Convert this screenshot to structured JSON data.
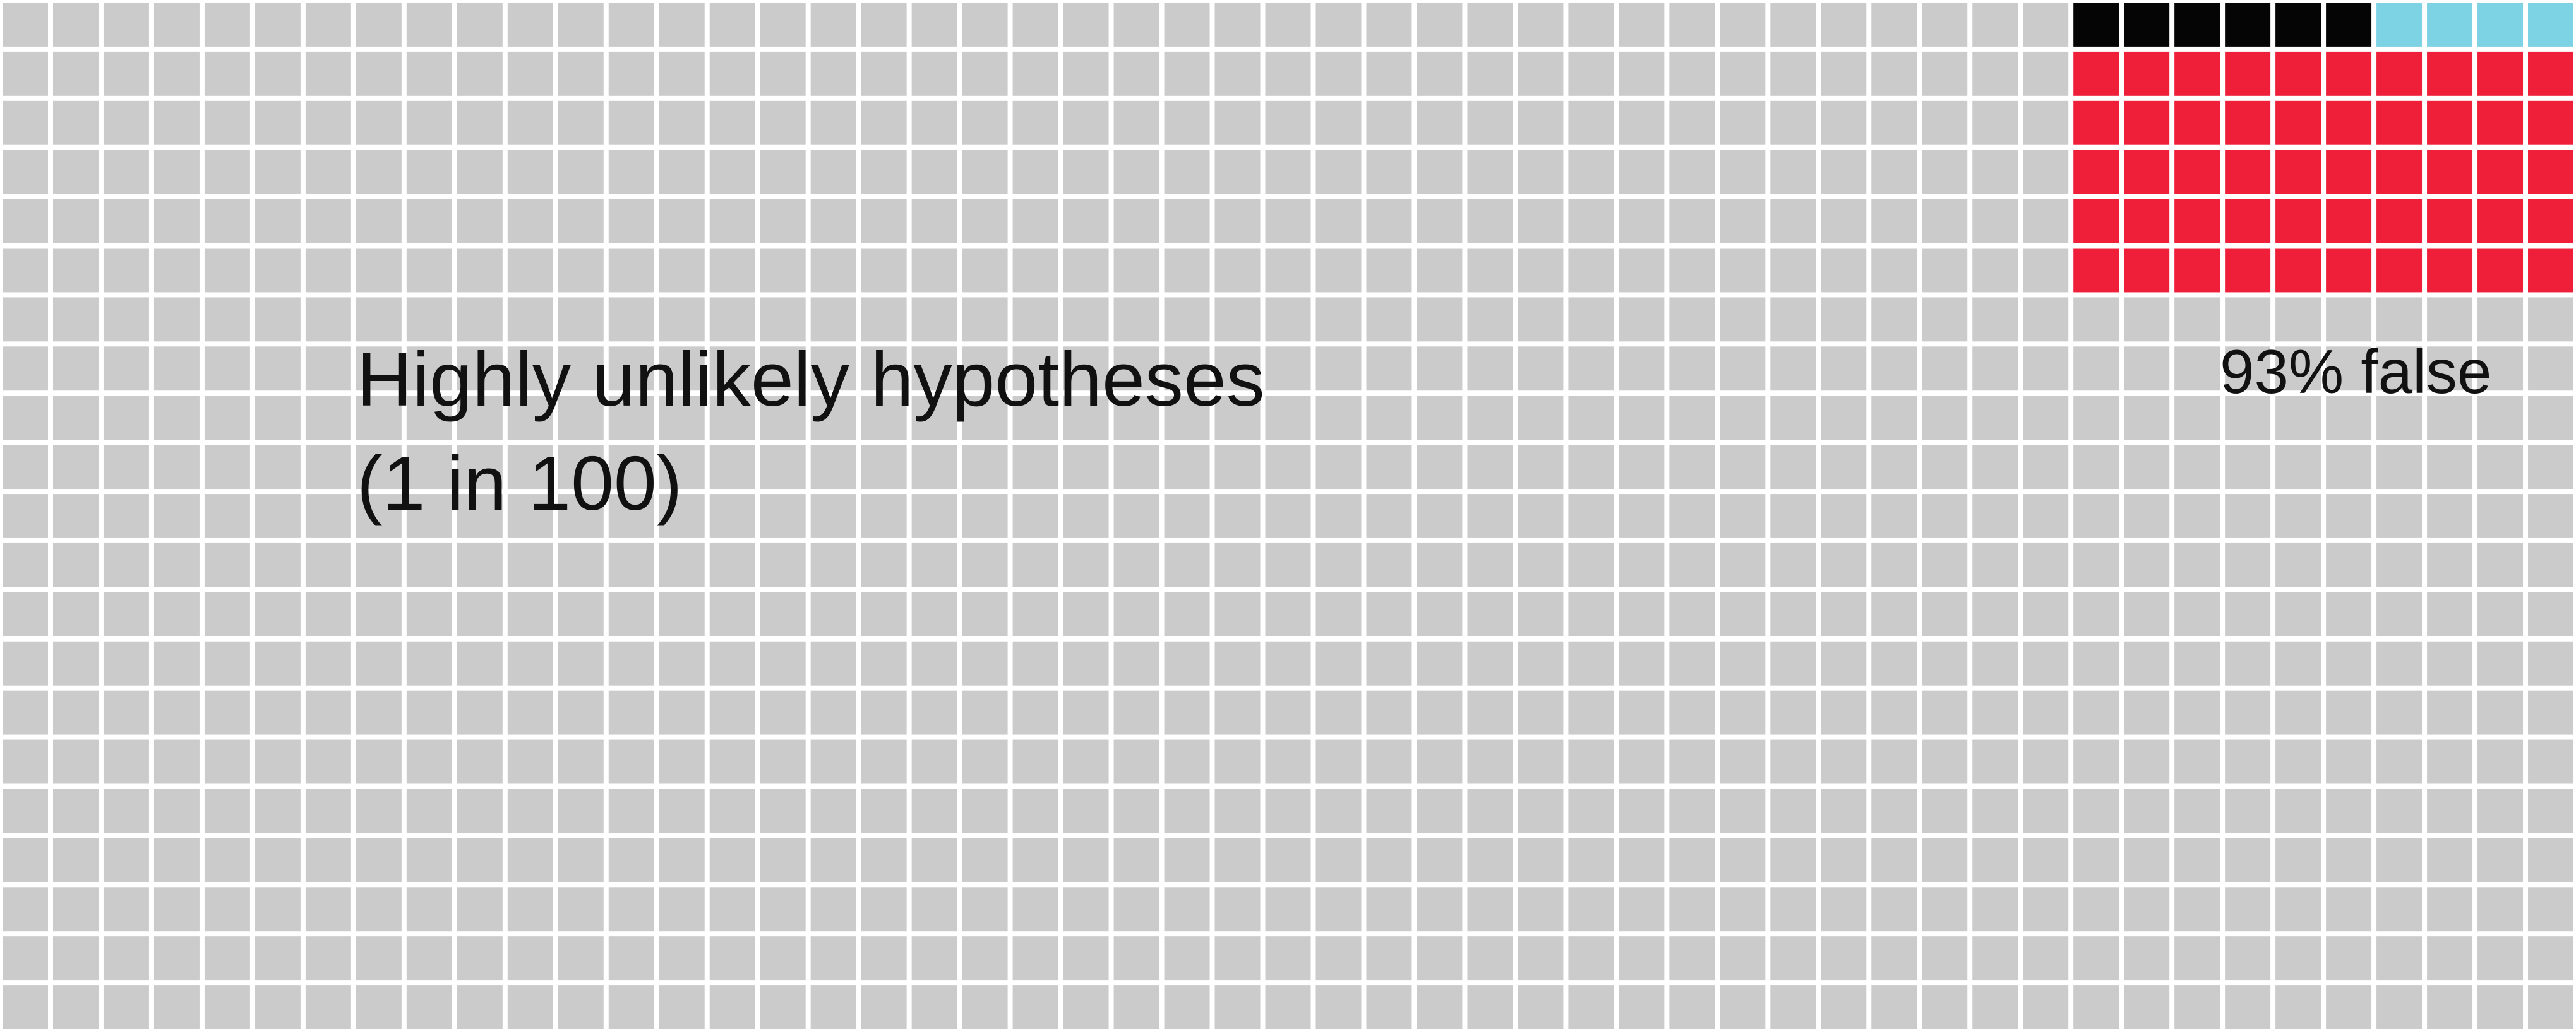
{
  "title": {
    "line1": "Highly unlikely hypotheses",
    "line2": "(1 in 100)"
  },
  "callout": {
    "text": "93% false"
  },
  "colors": {
    "background_cell": "#cbcbcb",
    "grid_line": "#ffffff",
    "false_positive": "#ef1f3a",
    "true_positive": "#050505",
    "false_negative": "#7dd2e3"
  },
  "chart_data": {
    "type": "waffle",
    "grid": {
      "columns": 51,
      "rows": 21
    },
    "highlight_block": {
      "columns": 10,
      "rows": 6,
      "top_row": [
        {
          "category": "true_positive",
          "count": 6
        },
        {
          "category": "false_negative",
          "count": 4
        }
      ],
      "other_rows": [
        {
          "category": "false_positive",
          "count": 50
        }
      ]
    },
    "false_rate_percent": 93
  }
}
